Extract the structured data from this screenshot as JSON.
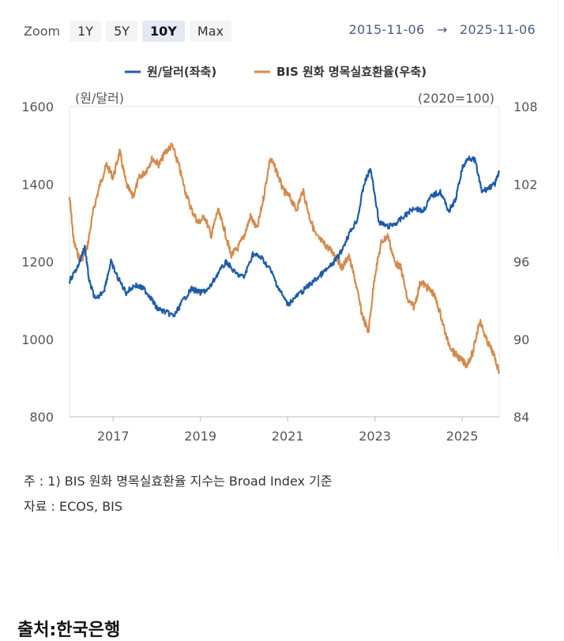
{
  "zoom": {
    "label": "Zoom",
    "buttons": [
      "1Y",
      "5Y",
      "10Y",
      "Max"
    ],
    "active": "10Y"
  },
  "range": {
    "start": "2015-11-06",
    "arrow": "→",
    "end": "2025-11-06"
  },
  "colors": {
    "krw": "#1f5ca8",
    "bis": "#d38b4e",
    "grid": "#e6e6e6",
    "axis": "#bbbbbb"
  },
  "chart_data": {
    "type": "line",
    "legend_position": "top-center",
    "left_unit": "(원/달러)",
    "right_unit": "(2020=100)",
    "xticks": [
      "2017",
      "2019",
      "2021",
      "2023",
      "2025"
    ],
    "y_left": {
      "ticks": [
        "1600",
        "1400",
        "1200",
        "1000",
        "800"
      ],
      "lim": [
        800,
        1600
      ]
    },
    "y_right": {
      "ticks": [
        "108",
        "102",
        "96",
        "90",
        "84"
      ],
      "lim": [
        84,
        108
      ]
    },
    "xlim": [
      2016.0,
      2025.85
    ],
    "series": [
      {
        "name": "원/달러(좌축)",
        "axis": "left",
        "x": [
          2016.0,
          2016.2,
          2016.35,
          2016.45,
          2016.6,
          2016.8,
          2016.95,
          2017.1,
          2017.3,
          2017.5,
          2017.7,
          2017.85,
          2018.0,
          2018.2,
          2018.4,
          2018.6,
          2018.8,
          2019.0,
          2019.2,
          2019.4,
          2019.6,
          2019.8,
          2020.0,
          2020.2,
          2020.4,
          2020.6,
          2020.8,
          2021.0,
          2021.2,
          2021.4,
          2021.6,
          2021.8,
          2022.0,
          2022.2,
          2022.4,
          2022.6,
          2022.75,
          2022.9,
          2023.1,
          2023.3,
          2023.5,
          2023.7,
          2023.9,
          2024.1,
          2024.3,
          2024.5,
          2024.7,
          2024.85,
          2025.0,
          2025.15,
          2025.3,
          2025.45,
          2025.6,
          2025.75,
          2025.85
        ],
        "y": [
          1150,
          1190,
          1240,
          1150,
          1100,
          1130,
          1200,
          1160,
          1120,
          1140,
          1130,
          1110,
          1080,
          1070,
          1060,
          1100,
          1130,
          1120,
          1130,
          1170,
          1200,
          1170,
          1160,
          1220,
          1210,
          1180,
          1130,
          1090,
          1110,
          1130,
          1150,
          1170,
          1190,
          1220,
          1270,
          1310,
          1400,
          1440,
          1300,
          1290,
          1300,
          1320,
          1340,
          1330,
          1370,
          1380,
          1330,
          1360,
          1440,
          1470,
          1460,
          1380,
          1390,
          1400,
          1430
        ]
      },
      {
        "name": "BIS 원화 명목실효환율(우축)",
        "axis": "right",
        "x": [
          2016.0,
          2016.1,
          2016.25,
          2016.4,
          2016.55,
          2016.7,
          2016.85,
          2017.0,
          2017.15,
          2017.3,
          2017.45,
          2017.6,
          2017.75,
          2017.9,
          2018.05,
          2018.2,
          2018.35,
          2018.5,
          2018.65,
          2018.8,
          2018.95,
          2019.1,
          2019.25,
          2019.4,
          2019.55,
          2019.7,
          2019.85,
          2020.0,
          2020.15,
          2020.3,
          2020.45,
          2020.6,
          2020.75,
          2020.9,
          2021.05,
          2021.2,
          2021.35,
          2021.5,
          2021.65,
          2021.8,
          2021.95,
          2022.1,
          2022.25,
          2022.4,
          2022.55,
          2022.7,
          2022.85,
          2023.0,
          2023.15,
          2023.3,
          2023.45,
          2023.6,
          2023.75,
          2023.9,
          2024.05,
          2024.2,
          2024.35,
          2024.5,
          2024.65,
          2024.8,
          2024.95,
          2025.1,
          2025.25,
          2025.4,
          2025.55,
          2025.7,
          2025.85
        ],
        "y": [
          101.0,
          97.5,
          96.0,
          97.0,
          100.0,
          102.0,
          103.5,
          102.5,
          104.5,
          102.0,
          101.0,
          102.5,
          103.0,
          104.0,
          103.5,
          104.5,
          105.0,
          103.5,
          101.5,
          100.0,
          99.0,
          99.5,
          98.0,
          100.0,
          98.5,
          96.5,
          97.0,
          98.0,
          99.5,
          98.5,
          101.0,
          104.0,
          103.0,
          101.5,
          101.0,
          100.0,
          101.5,
          99.5,
          98.0,
          97.5,
          97.0,
          96.5,
          95.5,
          96.5,
          94.5,
          92.0,
          90.5,
          95.0,
          97.5,
          98.0,
          96.0,
          95.5,
          93.0,
          92.5,
          94.5,
          94.0,
          93.5,
          92.0,
          90.0,
          89.0,
          88.5,
          88.0,
          89.0,
          91.5,
          90.0,
          89.0,
          87.5
        ]
      }
    ]
  },
  "notes": {
    "note1": "주 : 1)  BIS 원화 명목실효환율 지수는 Broad Index 기준",
    "note2": "자료 :  ECOS, BIS"
  },
  "source": "출처:한국은행"
}
